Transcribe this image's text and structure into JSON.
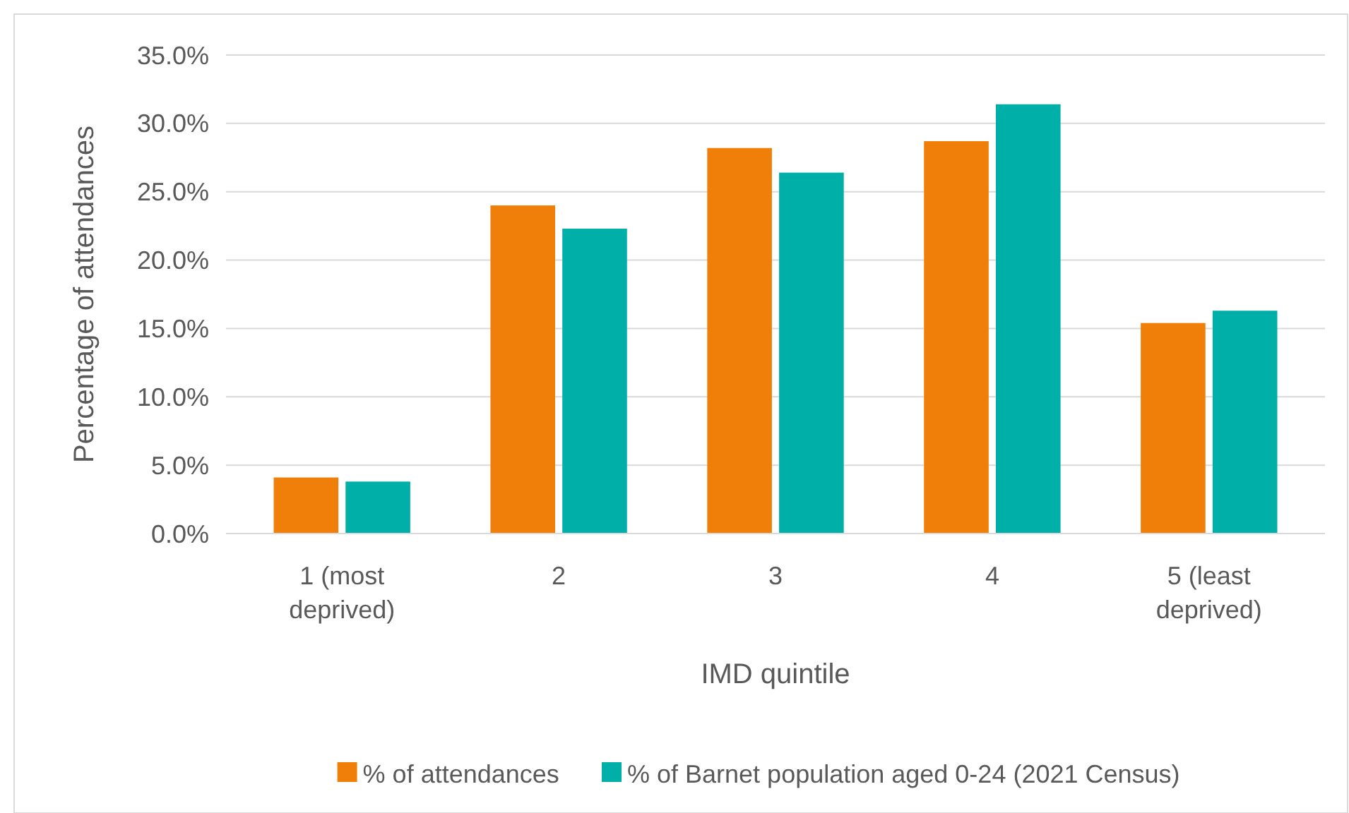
{
  "chart_data": {
    "type": "bar",
    "xlabel": "IMD quintile",
    "ylabel": "Percentage of attendances",
    "categories": [
      "1 (most deprived)",
      "2",
      "3",
      "4",
      "5 (least deprived)"
    ],
    "series": [
      {
        "name": "% of attendances",
        "color": "#f07f09",
        "values": [
          4.1,
          24.0,
          28.2,
          28.7,
          15.4
        ]
      },
      {
        "name": "% of Barnet population aged 0-24 (2021 Census)",
        "color": "#00b0a8",
        "values": [
          3.8,
          22.3,
          26.4,
          31.4,
          16.3
        ]
      }
    ],
    "ylim": [
      0,
      35
    ],
    "yticks": [
      {
        "value": 0,
        "label": "0.0%"
      },
      {
        "value": 5,
        "label": "5.0%"
      },
      {
        "value": 10,
        "label": "10.0%"
      },
      {
        "value": 15,
        "label": "15.0%"
      },
      {
        "value": 20,
        "label": "20.0%"
      },
      {
        "value": 25,
        "label": "25.0%"
      },
      {
        "value": 30,
        "label": "30.0%"
      },
      {
        "value": 35,
        "label": "35.0%"
      }
    ],
    "grid": "y",
    "legend": "bottom"
  }
}
